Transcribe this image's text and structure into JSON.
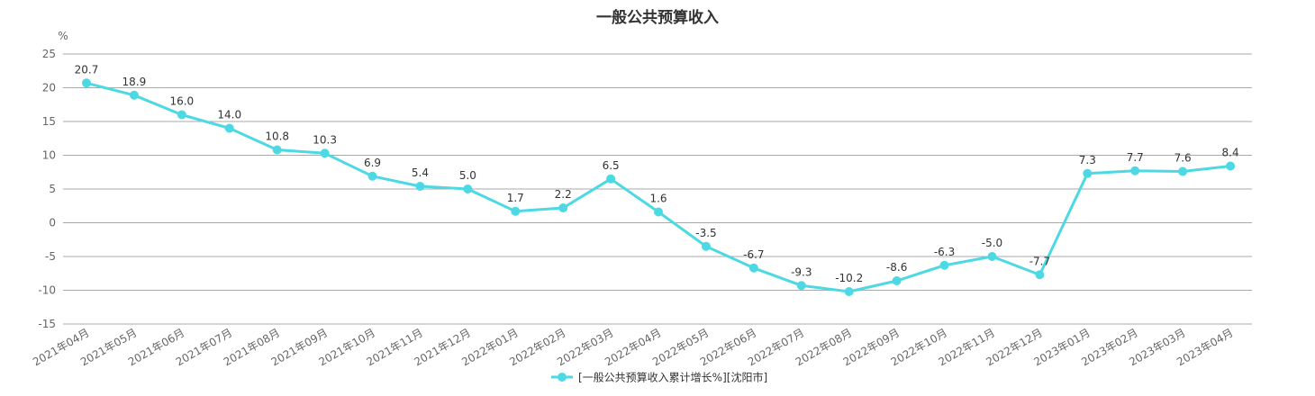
{
  "chart_data": {
    "type": "line",
    "title": "一般公共预算收入",
    "ylabel": "%",
    "xlabel": "",
    "ylim": [
      -15,
      25
    ],
    "yticks": [
      25,
      20,
      15,
      10,
      5,
      0,
      -5,
      -10,
      -15
    ],
    "grid": true,
    "legend_position": "bottom",
    "categories": [
      "2021年04月",
      "2021年05月",
      "2021年06月",
      "2021年07月",
      "2021年08月",
      "2021年09月",
      "2021年10月",
      "2021年11月",
      "2021年12月",
      "2022年01月",
      "2022年02月",
      "2022年03月",
      "2022年04月",
      "2022年05月",
      "2022年06月",
      "2022年07月",
      "2022年08月",
      "2022年09月",
      "2022年10月",
      "2022年11月",
      "2022年12月",
      "2023年01月",
      "2023年02月",
      "2023年03月",
      "2023年04月"
    ],
    "series": [
      {
        "name": "[一般公共预算收入累计增长%][沈阳市]",
        "color": "#4dd9e3",
        "values": [
          20.7,
          18.9,
          16.0,
          14.0,
          10.8,
          10.3,
          6.9,
          5.4,
          5.0,
          1.7,
          2.2,
          6.5,
          1.6,
          -3.5,
          -6.7,
          -9.3,
          -10.2,
          -8.6,
          -6.3,
          -5.0,
          -7.7,
          7.3,
          7.7,
          7.6,
          8.4
        ],
        "labels": [
          "20.7",
          "18.9",
          "16.0",
          "14.0",
          "10.8",
          "10.3",
          "6.9",
          "5.4",
          "5.0",
          "1.7",
          "2.2",
          "6.5",
          "1.6",
          "-3.5",
          "-6.7",
          "-9.3",
          "-10.2",
          "-8.6",
          "-6.3",
          "-5.0",
          "-7.7",
          "7.3",
          "7.7",
          "7.6",
          "8.4"
        ]
      }
    ]
  }
}
